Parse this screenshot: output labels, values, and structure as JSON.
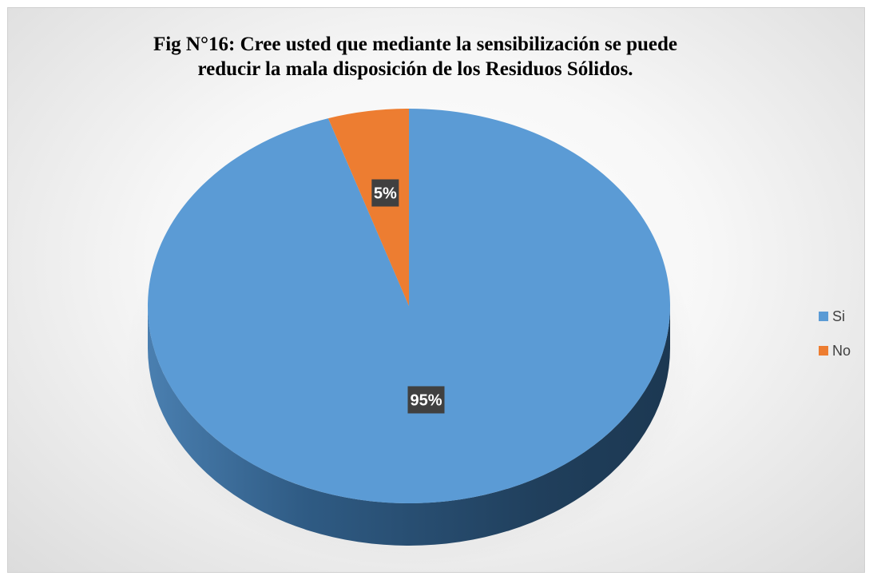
{
  "chart_data": {
    "type": "pie",
    "title_lines": [
      "Fig N°16: Cree usted que mediante la sensibilización se puede",
      "reducir la mala disposición de los Residuos Sólidos."
    ],
    "categories": [
      "Si",
      "No"
    ],
    "values": [
      95,
      5
    ],
    "data_labels": [
      "95%",
      "5%"
    ],
    "colors": [
      "#5b9bd5",
      "#ed7d31"
    ],
    "side_colors": [
      "#2e5d87",
      "#b35a1f"
    ],
    "legend_position": "right",
    "style": "3d"
  }
}
